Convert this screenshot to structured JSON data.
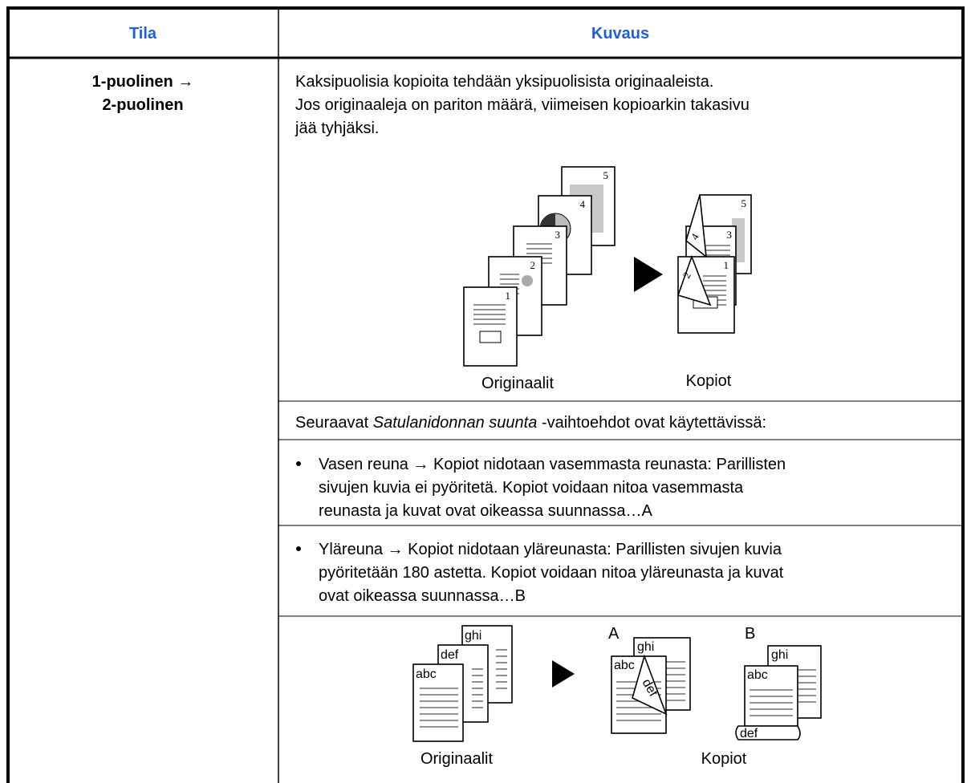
{
  "table": {
    "headers": [
      "Tila",
      "Kuvaus"
    ],
    "rows": [
      {
        "mode": [
          "1-puolinen →",
          "2-puolinen"
        ],
        "description": {
          "intro": [
            "Kaksipuolisia kopioita tehdään yksipuolisista originaaleista.",
            "Jos originaaleja on pariton määrä, viimeisen kopioarkin takasivu",
            "jää tyhjäksi."
          ],
          "figure1": {
            "originals": [
              "1",
              "2",
              "3",
              "4",
              "5"
            ],
            "copies": [
              "1",
              "2",
              "3",
              "4",
              "5"
            ],
            "labels": [
              "Originaalit",
              "Kopiot"
            ]
          },
          "options_intro": {
            "before": "Seuraavat ",
            "emphasis": "Satulanidonnan suunta",
            "after": " -vaihtoehdot ovat käytettävissä:"
          },
          "bullets": [
            [
              "Vasen reuna → Kopiot nidotaan vasemmasta reunasta: Parillisten",
              "sivujen kuvia ei pyöritetä. Kopiot voidaan nitoa vasemmasta",
              "reunasta ja kuvat ovat oikeassa suunnassa…A"
            ],
            [
              "Yläreuna → Kopiot nidotaan yläreunasta: Parillisten sivujen kuvia",
              "pyöritetään 180 astetta. Kopiot voidaan nitoa yläreunasta ja kuvat",
              "ovat oikeassa suunnassa…B"
            ]
          ],
          "figure2": {
            "originals": [
              "abc",
              "def",
              "ghi"
            ],
            "variants": [
              "A",
              "B"
            ],
            "labels": [
              "Originaalit",
              "Kopiot"
            ]
          }
        }
      }
    ]
  }
}
